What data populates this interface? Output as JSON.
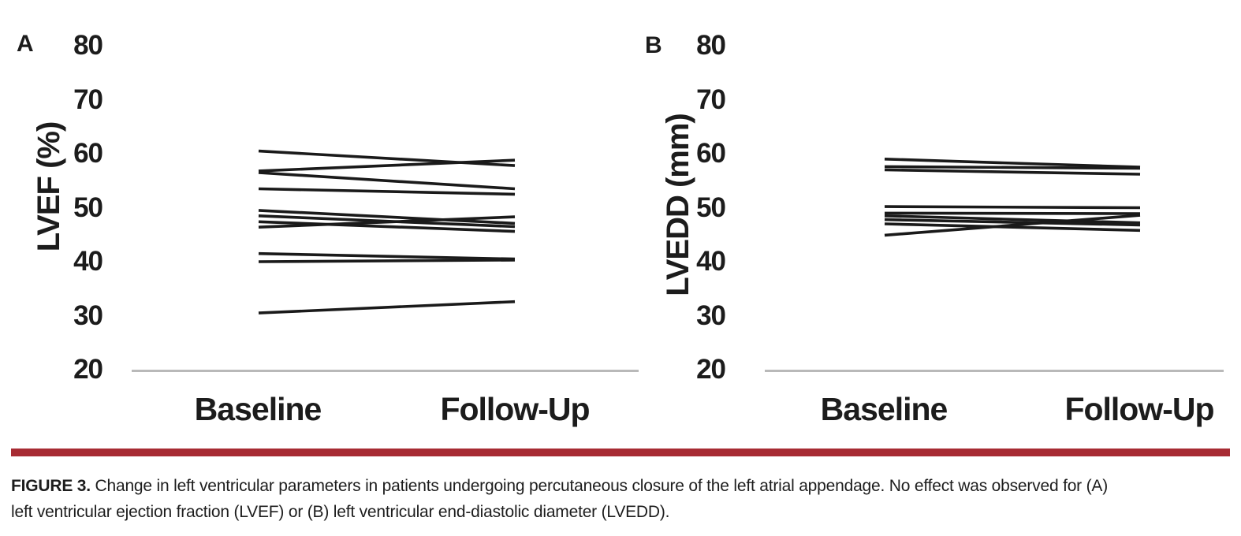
{
  "chart_data": [
    {
      "type": "line",
      "subtype": "paired-slopegraph",
      "panel_label": "A",
      "ylabel": "LVEF (%)",
      "x_categories": [
        "Baseline",
        "Follow-Up"
      ],
      "yticks": [
        80,
        70,
        60,
        50,
        40,
        30,
        20
      ],
      "ylim": [
        20,
        80
      ],
      "grid": false,
      "legend": "none",
      "series": [
        [
          60.5,
          57.8
        ],
        [
          56.8,
          58.8
        ],
        [
          56.5,
          53.5
        ],
        [
          53.5,
          52.5
        ],
        [
          49.5,
          47.1
        ],
        [
          48.5,
          46.5
        ],
        [
          47.4,
          45.6
        ],
        [
          46.4,
          48.3
        ],
        [
          41.5,
          40.5
        ],
        [
          40.0,
          40.3
        ],
        [
          30.5,
          32.6
        ]
      ]
    },
    {
      "type": "line",
      "subtype": "paired-slopegraph",
      "panel_label": "B",
      "ylabel": "LVEDD (mm)",
      "x_categories": [
        "Baseline",
        "Follow-Up"
      ],
      "yticks": [
        80,
        70,
        60,
        50,
        40,
        30,
        20
      ],
      "ylim": [
        20,
        80
      ],
      "grid": false,
      "legend": "none",
      "series": [
        [
          59.0,
          57.5
        ],
        [
          57.6,
          57.3
        ],
        [
          57.0,
          56.2
        ],
        [
          50.2,
          50.0
        ],
        [
          49.0,
          48.9
        ],
        [
          48.5,
          47.2
        ],
        [
          47.8,
          46.8
        ],
        [
          47.0,
          45.8
        ],
        [
          44.9,
          48.6
        ]
      ]
    }
  ],
  "caption": {
    "label": "FIGURE 3.",
    "line1_rest": " Change in left ventricular parameters in patients undergoing percutaneous closure of the left atrial appendage. No effect was observed for (A)",
    "line2": "left ventricular ejection fraction (LVEF) or (B) left ventricular end-diastolic diameter (LVEDD)."
  },
  "colors": {
    "line": "#1a1a1a",
    "axis_line": "#b9b9b9",
    "divider_rule": "#a72b33",
    "text": "#1c1c1c"
  }
}
